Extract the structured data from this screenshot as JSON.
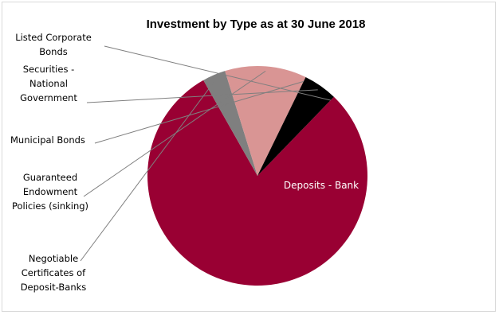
{
  "chart_data": {
    "type": "pie",
    "title": "Investment by Type as at 30 June 2018",
    "categories": [
      "Deposits - Bank",
      "Negotiable Certificates of Deposit-Banks",
      "Guaranteed Endowment Policies (sinking)",
      "Municipal Bonds",
      "Securities - National Government",
      "Listed Corporate Bonds"
    ],
    "values": [
      79.6,
      3.4,
      12.0,
      0.0,
      5.0,
      0.0
    ],
    "unit": "%",
    "colors": [
      "#990033",
      "#7f7f7f",
      "#d99594",
      "#000000",
      "#000000",
      "#000000"
    ],
    "legend": "none",
    "data_labels": {
      "Deposits - Bank": "Deposits - Bank"
    }
  }
}
